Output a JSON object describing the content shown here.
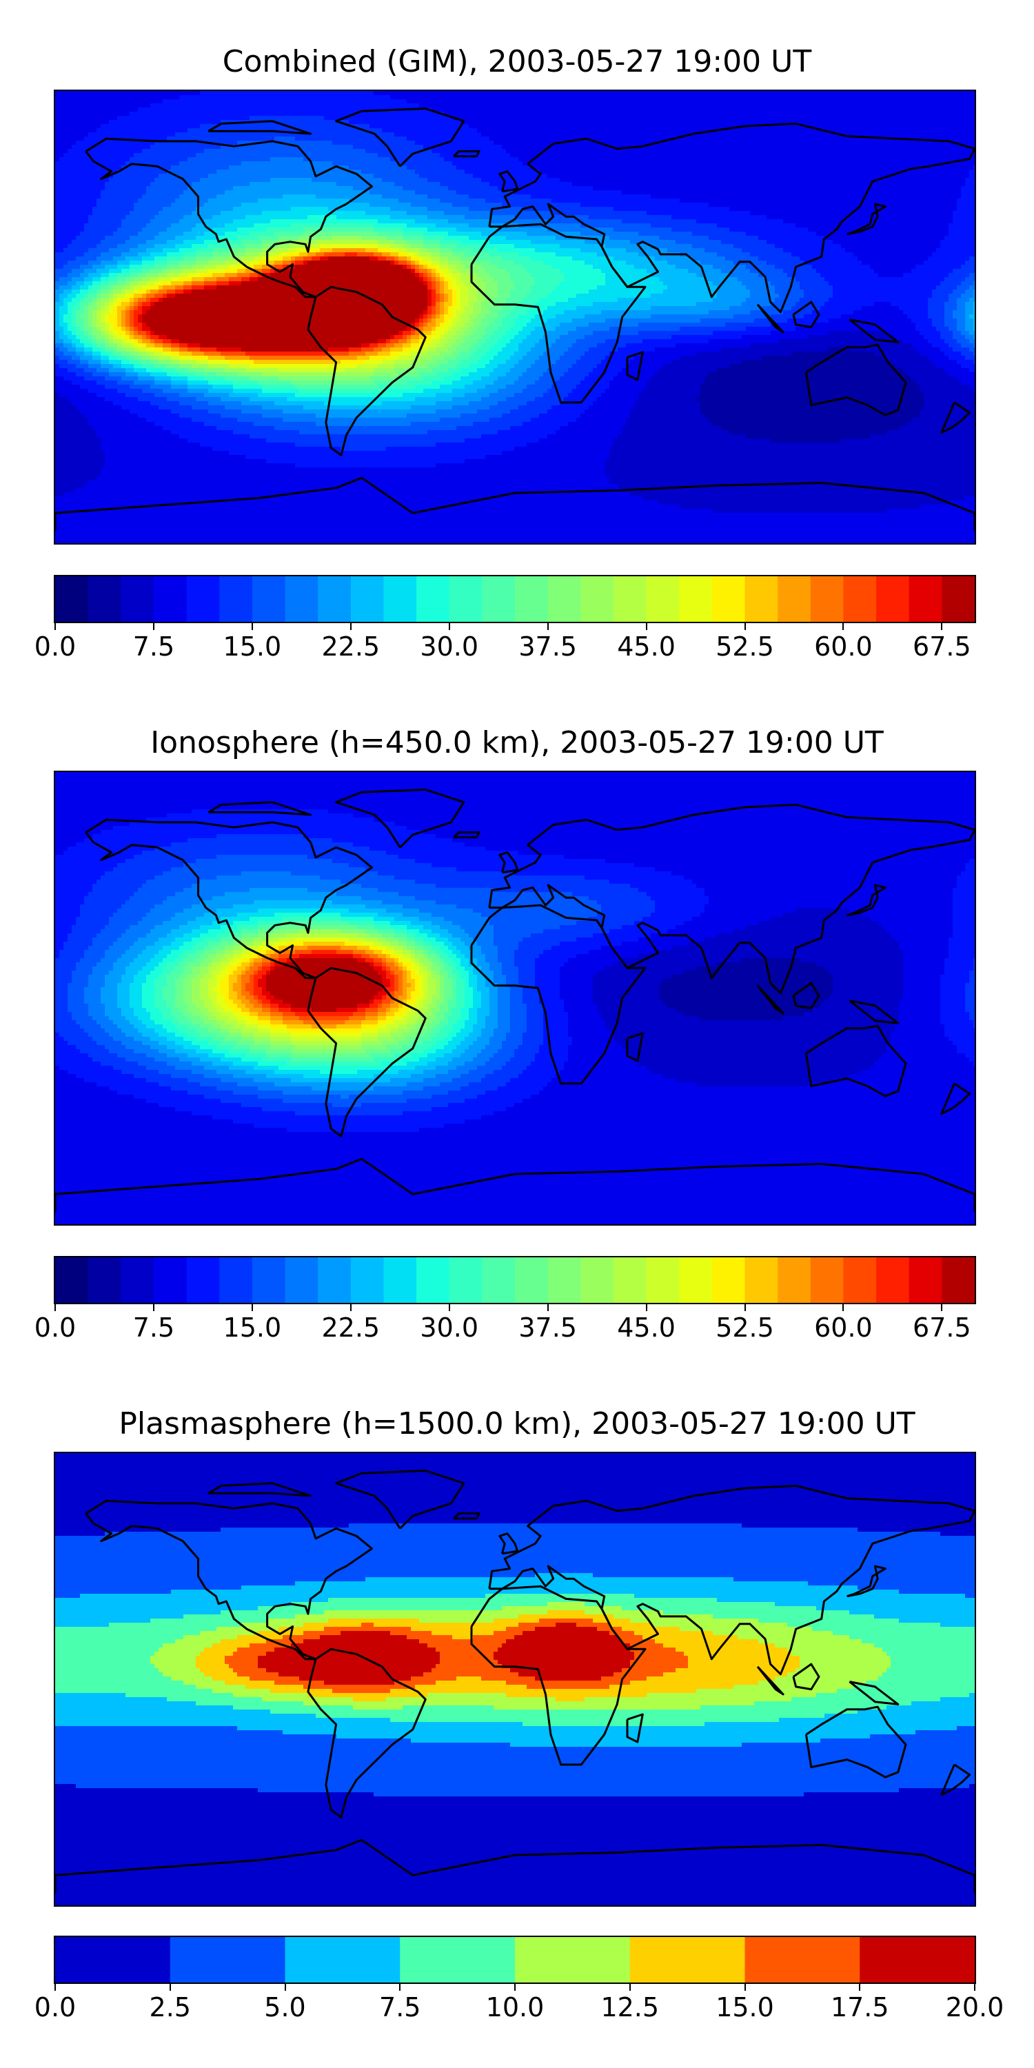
{
  "chart_data": [
    {
      "type": "heatmap",
      "title": "Combined (GIM), 2003-05-27 19:00 UT",
      "colorbar": {
        "ticks": [
          "0.0",
          "7.5",
          "15.0",
          "22.5",
          "30.0",
          "37.5",
          "45.0",
          "52.5",
          "60.0",
          "67.5"
        ],
        "range": [
          0,
          70
        ],
        "levels": 28,
        "colors": [
          "#00007f",
          "#0000a3",
          "#0000c8",
          "#0000ed",
          "#0012ff",
          "#0034ff",
          "#0056ff",
          "#0078ff",
          "#009bff",
          "#00bdff",
          "#00dff4",
          "#1affdb",
          "#34ffc2",
          "#4dffaa",
          "#67ff90",
          "#80ff77",
          "#9aff5d",
          "#b4ff44",
          "#cdff2a",
          "#e7ff10",
          "#fff200",
          "#ffc800",
          "#ff9e00",
          "#ff7400",
          "#ff4a00",
          "#ff2000",
          "#e40000",
          "#b20000"
        ]
      },
      "field": {
        "background": 8,
        "blobs": [
          {
            "lon": -63,
            "lat": 10,
            "rlon": 18,
            "rlat": 10,
            "amp": 58
          },
          {
            "lon": -75,
            "lat": 6,
            "rlon": 45,
            "rlat": 18,
            "amp": 36
          },
          {
            "lon": -110,
            "lat": -2,
            "rlon": 38,
            "rlat": 12,
            "amp": 38
          },
          {
            "lon": -140,
            "lat": 0,
            "rlon": 26,
            "rlat": 12,
            "amp": 22
          },
          {
            "lon": -55,
            "lat": -18,
            "rlon": 55,
            "rlat": 20,
            "amp": 20
          },
          {
            "lon": -90,
            "lat": 45,
            "rlon": 50,
            "rlat": 25,
            "amp": 12
          },
          {
            "lon": 20,
            "lat": 20,
            "rlon": 55,
            "rlat": 14,
            "amp": 16
          },
          {
            "lon": 80,
            "lat": 5,
            "rlon": 35,
            "rlat": 10,
            "amp": 10
          }
        ],
        "lows": [
          {
            "lon": 110,
            "lat": -25,
            "rlon": 70,
            "rlat": 25,
            "amp": -5
          }
        ]
      }
    },
    {
      "type": "heatmap",
      "title": "Ionosphere  (h=450.0 km), 2003-05-27 19:00 UT",
      "colorbar": {
        "ticks": [
          "0.0",
          "7.5",
          "15.0",
          "22.5",
          "30.0",
          "37.5",
          "45.0",
          "52.5",
          "60.0",
          "67.5"
        ],
        "range": [
          0,
          70
        ],
        "levels": 28,
        "colors": [
          "#00007f",
          "#0000a3",
          "#0000c8",
          "#0000ed",
          "#0012ff",
          "#0034ff",
          "#0056ff",
          "#0078ff",
          "#009bff",
          "#00bdff",
          "#00dff4",
          "#1affdb",
          "#34ffc2",
          "#4dffaa",
          "#67ff90",
          "#80ff77",
          "#9aff5d",
          "#b4ff44",
          "#cdff2a",
          "#e7ff10",
          "#fff200",
          "#ffc800",
          "#ff9e00",
          "#ff7400",
          "#ff4a00",
          "#ff2000",
          "#e40000",
          "#b20000"
        ]
      },
      "field": {
        "background": 8,
        "blobs": [
          {
            "lon": -70,
            "lat": 10,
            "rlon": 28,
            "rlat": 12,
            "amp": 40
          },
          {
            "lon": -95,
            "lat": 0,
            "rlon": 50,
            "rlat": 18,
            "amp": 30
          },
          {
            "lon": -60,
            "lat": -15,
            "rlon": 40,
            "rlat": 18,
            "amp": 18
          },
          {
            "lon": -100,
            "lat": 40,
            "rlon": 50,
            "rlat": 20,
            "amp": 10
          },
          {
            "lon": 20,
            "lat": 35,
            "rlon": 40,
            "rlat": 12,
            "amp": 8
          }
        ],
        "lows": [
          {
            "lon": 90,
            "lat": 5,
            "rlon": 80,
            "rlat": 20,
            "amp": -4
          }
        ]
      }
    },
    {
      "type": "heatmap",
      "title": "Plasmasphere (h=1500.0 km), 2003-05-27 19:00 UT",
      "colorbar": {
        "ticks": [
          "0.0",
          "2.5",
          "5.0",
          "7.5",
          "10.0",
          "12.5",
          "15.0",
          "17.5",
          "20.0"
        ],
        "range": [
          0,
          20
        ],
        "levels": 8,
        "colors": [
          "#0000cd",
          "#0050ff",
          "#00c0ff",
          "#4affad",
          "#adff4a",
          "#ffd000",
          "#ff5800",
          "#c90000"
        ]
      },
      "field": {
        "background": 2,
        "blobs": [
          {
            "lon": -60,
            "lat": 8,
            "rlon": 18,
            "rlat": 10,
            "amp": 10
          },
          {
            "lon": 20,
            "lat": 12,
            "rlon": 15,
            "rlat": 9,
            "amp": 9
          },
          {
            "lon": -100,
            "lat": 6,
            "rlon": 20,
            "rlat": 9,
            "amp": 6
          },
          {
            "lon": -30,
            "lat": 10,
            "rlon": 90,
            "rlat": 15,
            "amp": 6
          },
          {
            "lon": 70,
            "lat": 5,
            "rlon": 90,
            "rlat": 18,
            "amp": 6
          },
          {
            "lon": 0,
            "lat": 8,
            "rlon": 200,
            "rlat": 26,
            "amp": 4
          }
        ],
        "lows": []
      }
    }
  ],
  "coastlines": {
    "north_america": [
      [
        -168,
        66
      ],
      [
        -160,
        71
      ],
      [
        -140,
        70
      ],
      [
        -125,
        70
      ],
      [
        -110,
        68
      ],
      [
        -95,
        70
      ],
      [
        -85,
        68
      ],
      [
        -80,
        62
      ],
      [
        -78,
        56
      ],
      [
        -70,
        60
      ],
      [
        -62,
        57
      ],
      [
        -56,
        52
      ],
      [
        -66,
        45
      ],
      [
        -70,
        43
      ],
      [
        -74,
        40
      ],
      [
        -76,
        35
      ],
      [
        -80,
        32
      ],
      [
        -81,
        26
      ],
      [
        -82,
        29
      ],
      [
        -88,
        30
      ],
      [
        -94,
        29
      ],
      [
        -97,
        26
      ],
      [
        -97,
        21
      ],
      [
        -92,
        18
      ],
      [
        -87,
        21
      ],
      [
        -88,
        16
      ],
      [
        -83,
        10
      ],
      [
        -78,
        8
      ],
      [
        -82,
        8
      ],
      [
        -86,
        12
      ],
      [
        -92,
        14
      ],
      [
        -97,
        16
      ],
      [
        -105,
        20
      ],
      [
        -110,
        24
      ],
      [
        -113,
        31
      ],
      [
        -116,
        30
      ],
      [
        -117,
        33
      ],
      [
        -121,
        36
      ],
      [
        -124,
        41
      ],
      [
        -124,
        48
      ],
      [
        -130,
        55
      ],
      [
        -140,
        60
      ],
      [
        -150,
        61
      ],
      [
        -155,
        58
      ],
      [
        -162,
        55
      ],
      [
        -158,
        58
      ],
      [
        -165,
        62
      ],
      [
        -168,
        66
      ]
    ],
    "south_america": [
      [
        -78,
        8
      ],
      [
        -72,
        12
      ],
      [
        -62,
        10
      ],
      [
        -52,
        5
      ],
      [
        -48,
        0
      ],
      [
        -38,
        -5
      ],
      [
        -35,
        -8
      ],
      [
        -40,
        -20
      ],
      [
        -48,
        -26
      ],
      [
        -57,
        -35
      ],
      [
        -62,
        -40
      ],
      [
        -66,
        -47
      ],
      [
        -68,
        -55
      ],
      [
        -72,
        -52
      ],
      [
        -74,
        -42
      ],
      [
        -72,
        -30
      ],
      [
        -70,
        -18
      ],
      [
        -76,
        -12
      ],
      [
        -81,
        -5
      ],
      [
        -80,
        0
      ],
      [
        -78,
        8
      ]
    ],
    "greenland": [
      [
        -45,
        60
      ],
      [
        -40,
        65
      ],
      [
        -25,
        70
      ],
      [
        -20,
        78
      ],
      [
        -35,
        83
      ],
      [
        -60,
        82
      ],
      [
        -70,
        78
      ],
      [
        -55,
        73
      ],
      [
        -50,
        68
      ],
      [
        -45,
        60
      ]
    ],
    "eurasia": [
      [
        -10,
        36
      ],
      [
        -9,
        43
      ],
      [
        -2,
        44
      ],
      [
        -4,
        48
      ],
      [
        2,
        51
      ],
      [
        8,
        54
      ],
      [
        10,
        57
      ],
      [
        5,
        61
      ],
      [
        15,
        69
      ],
      [
        28,
        71
      ],
      [
        40,
        67
      ],
      [
        50,
        68
      ],
      [
        70,
        73
      ],
      [
        90,
        76
      ],
      [
        110,
        77
      ],
      [
        130,
        72
      ],
      [
        150,
        71
      ],
      [
        170,
        70
      ],
      [
        180,
        67
      ],
      [
        178,
        63
      ],
      [
        162,
        60
      ],
      [
        155,
        59
      ],
      [
        140,
        54
      ],
      [
        135,
        44
      ],
      [
        128,
        38
      ],
      [
        126,
        35
      ],
      [
        121,
        31
      ],
      [
        120,
        24
      ],
      [
        110,
        20
      ],
      [
        108,
        12
      ],
      [
        104,
        2
      ],
      [
        100,
        6
      ],
      [
        98,
        16
      ],
      [
        92,
        22
      ],
      [
        88,
        22
      ],
      [
        80,
        12
      ],
      [
        77,
        8
      ],
      [
        73,
        20
      ],
      [
        67,
        25
      ],
      [
        57,
        25
      ],
      [
        56,
        27
      ],
      [
        50,
        30
      ],
      [
        48,
        29
      ],
      [
        52,
        24
      ],
      [
        56,
        18
      ],
      [
        44,
        12
      ],
      [
        38,
        20
      ],
      [
        34,
        28
      ],
      [
        35,
        33
      ],
      [
        27,
        37
      ],
      [
        23,
        40
      ],
      [
        20,
        40
      ],
      [
        13,
        45
      ],
      [
        15,
        40
      ],
      [
        12,
        37
      ],
      [
        7,
        44
      ],
      [
        3,
        43
      ],
      [
        0,
        39
      ],
      [
        -5,
        36
      ],
      [
        -10,
        36
      ]
    ],
    "africa": [
      [
        -17,
        21
      ],
      [
        -10,
        32
      ],
      [
        -5,
        36
      ],
      [
        10,
        37
      ],
      [
        20,
        32
      ],
      [
        32,
        31
      ],
      [
        34,
        28
      ],
      [
        38,
        20
      ],
      [
        44,
        12
      ],
      [
        51,
        12
      ],
      [
        42,
        0
      ],
      [
        40,
        -10
      ],
      [
        35,
        -22
      ],
      [
        26,
        -34
      ],
      [
        18,
        -34
      ],
      [
        14,
        -22
      ],
      [
        12,
        -6
      ],
      [
        9,
        4
      ],
      [
        0,
        5
      ],
      [
        -8,
        5
      ],
      [
        -17,
        14
      ],
      [
        -17,
        21
      ]
    ],
    "australia": [
      [
        114,
        -22
      ],
      [
        120,
        -18
      ],
      [
        130,
        -12
      ],
      [
        137,
        -12
      ],
      [
        142,
        -11
      ],
      [
        146,
        -18
      ],
      [
        153,
        -26
      ],
      [
        150,
        -37
      ],
      [
        145,
        -39
      ],
      [
        138,
        -35
      ],
      [
        130,
        -32
      ],
      [
        116,
        -35
      ],
      [
        114,
        -22
      ]
    ],
    "antarctica": [
      [
        -180,
        -85
      ],
      [
        -180,
        -78
      ],
      [
        -140,
        -75
      ],
      [
        -100,
        -72
      ],
      [
        -70,
        -68
      ],
      [
        -60,
        -64
      ],
      [
        -40,
        -78
      ],
      [
        0,
        -70
      ],
      [
        40,
        -69
      ],
      [
        80,
        -67
      ],
      [
        120,
        -66
      ],
      [
        160,
        -70
      ],
      [
        180,
        -78
      ],
      [
        180,
        -85
      ]
    ],
    "madagascar": [
      [
        44,
        -16
      ],
      [
        50,
        -14
      ],
      [
        48,
        -25
      ],
      [
        44,
        -23
      ],
      [
        44,
        -16
      ]
    ],
    "japan": [
      [
        130,
        33
      ],
      [
        135,
        34
      ],
      [
        140,
        36
      ],
      [
        142,
        40
      ],
      [
        141,
        45
      ],
      [
        145,
        44
      ],
      [
        140,
        41
      ],
      [
        139,
        37
      ],
      [
        133,
        34
      ],
      [
        130,
        33
      ]
    ],
    "britain": [
      [
        -5,
        50
      ],
      [
        1,
        51
      ],
      [
        0,
        54
      ],
      [
        -3,
        58
      ],
      [
        -6,
        57
      ],
      [
        -4,
        54
      ],
      [
        -5,
        50
      ]
    ],
    "new_zealand": [
      [
        172,
        -34
      ],
      [
        178,
        -38
      ],
      [
        175,
        -41
      ],
      [
        171,
        -44
      ],
      [
        167,
        -46
      ],
      [
        172,
        -34
      ]
    ],
    "borneo": [
      [
        109,
        1
      ],
      [
        116,
        6
      ],
      [
        119,
        1
      ],
      [
        116,
        -4
      ],
      [
        110,
        -3
      ],
      [
        109,
        1
      ]
    ],
    "sumatra": [
      [
        95,
        5
      ],
      [
        105,
        -6
      ],
      [
        102,
        -4
      ],
      [
        95,
        5
      ]
    ],
    "new_guinea": [
      [
        131,
        -1
      ],
      [
        141,
        -3
      ],
      [
        150,
        -10
      ],
      [
        141,
        -9
      ],
      [
        131,
        -1
      ]
    ],
    "arctic_islands": [
      [
        -120,
        74
      ],
      [
        -95,
        74
      ],
      [
        -80,
        73
      ],
      [
        -95,
        78
      ],
      [
        -115,
        77
      ],
      [
        -120,
        74
      ]
    ],
    "iceland": [
      [
        -24,
        64
      ],
      [
        -15,
        64
      ],
      [
        -14,
        66
      ],
      [
        -22,
        66
      ],
      [
        -24,
        64
      ]
    ]
  }
}
